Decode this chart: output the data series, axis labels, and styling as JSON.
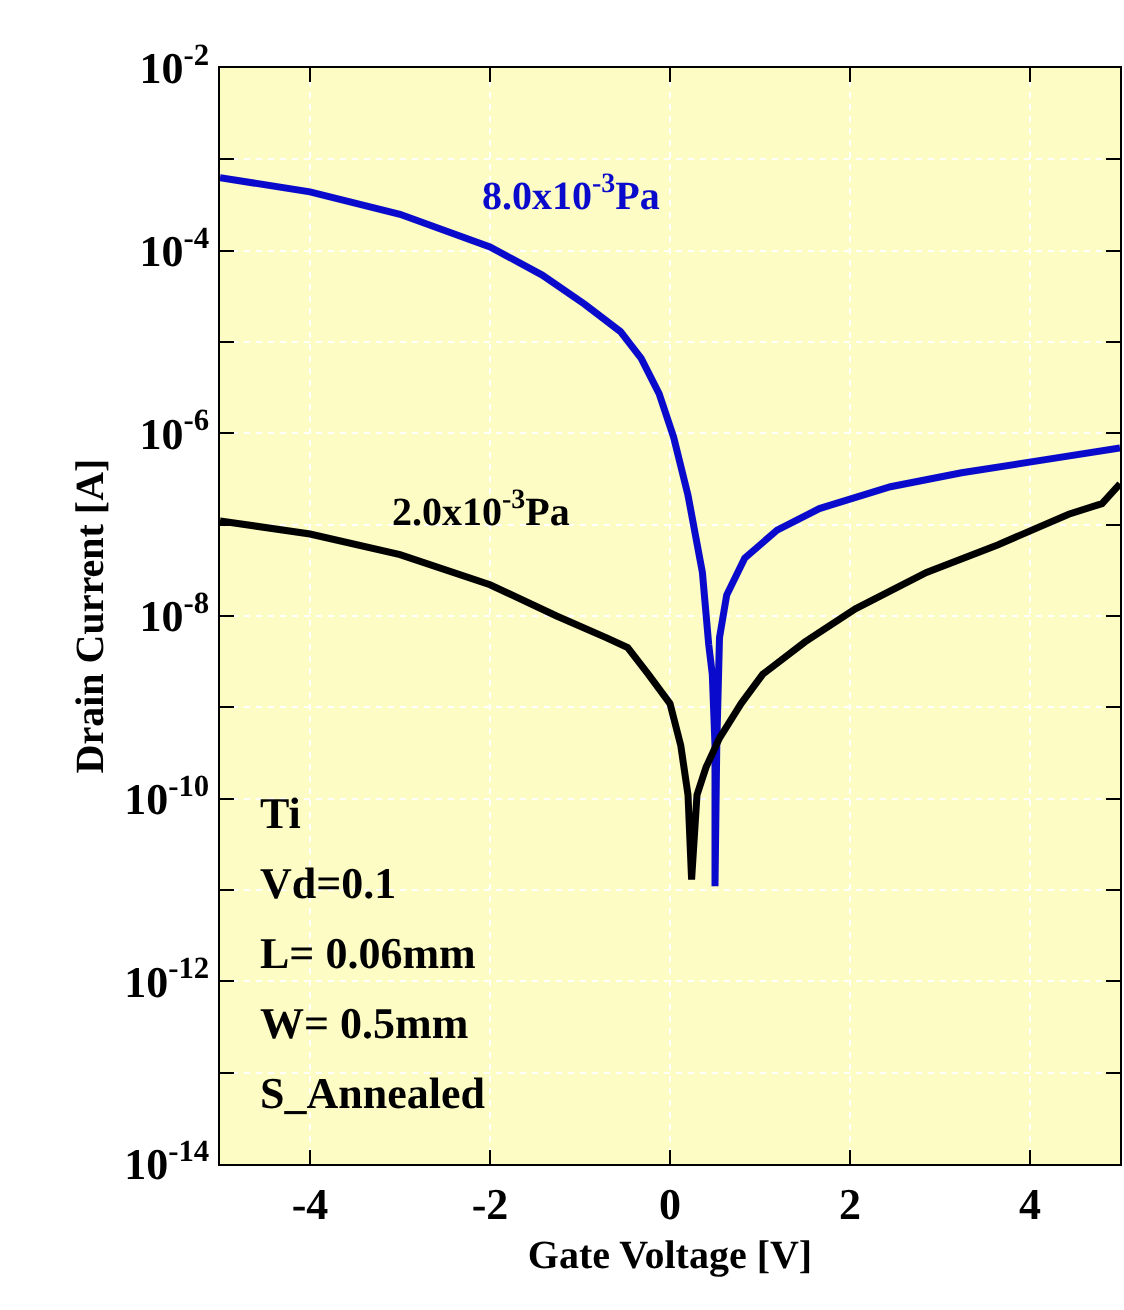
{
  "chart_data": {
    "type": "line",
    "xlabel": "Gate Voltage [V]",
    "ylabel": "Drain Current [A]",
    "xlim": [
      -5,
      5
    ],
    "xticks": [
      -4,
      -2,
      0,
      2,
      4
    ],
    "ylim": [
      1e-14,
      0.01
    ],
    "log": "y",
    "grid": true,
    "marker": "none",
    "line_style": "solid",
    "yticks": [
      {
        "value": 0.01,
        "label": "10$^{-2}$"
      },
      {
        "value": 0.001,
        "label": null
      },
      {
        "value": 0.0001,
        "label": "10$^{-4}$"
      },
      {
        "value": 1e-05,
        "label": null
      },
      {
        "value": 1e-06,
        "label": "10$^{-6}$"
      },
      {
        "value": 1e-07,
        "label": null
      },
      {
        "value": 1e-08,
        "label": "10$^{-8}$"
      },
      {
        "value": 1e-09,
        "label": null
      },
      {
        "value": 1e-10,
        "label": "10$^{-10}$"
      },
      {
        "value": 1e-11,
        "label": null
      },
      {
        "value": 1e-12,
        "label": "10$^{-12}$"
      },
      {
        "value": 1e-13,
        "label": null
      },
      {
        "value": 1e-14,
        "label": "10$^{-14}$"
      }
    ],
    "series": [
      {
        "color": "#0a0acc",
        "x": [
          -5,
          -4,
          -3,
          -2,
          -1.42,
          -0.95,
          -0.55,
          -0.32,
          -0.12,
          0.04,
          0.2,
          0.36,
          0.43,
          0.47,
          0.5,
          0.5,
          0.52,
          0.55,
          0.63,
          0.83,
          1.19,
          1.66,
          2.45,
          3.24,
          4.03,
          5.0
        ],
        "values": [
          0.00063,
          0.00044,
          0.00025,
          0.00011,
          5.4e-05,
          2.6e-05,
          1.3e-05,
          6.6e-06,
          2.7e-06,
          9.1e-07,
          2.1e-07,
          3e-08,
          4.9e-09,
          2.3e-09,
          3.8e-10,
          1.1e-11,
          4e-10,
          5.8e-09,
          1.7e-08,
          4.3e-08,
          8.7e-08,
          1.5e-07,
          2.6e-07,
          3.7e-07,
          4.9e-07,
          6.9e-07
        ]
      },
      {
        "color": "#000000",
        "x": [
          -5,
          -4,
          -3,
          -2,
          -1.26,
          -0.71,
          -0.47,
          -0.24,
          0,
          0.12,
          0.2,
          0.24,
          0.3,
          0.4,
          0.55,
          0.79,
          1.03,
          1.5,
          2.06,
          2.85,
          3.64,
          4.43,
          4.8,
          5.0
        ],
        "values": [
          1.1e-07,
          7.9e-08,
          4.7e-08,
          2.2e-08,
          1e-08,
          5.8e-09,
          4.5e-09,
          2.3e-09,
          1.1e-09,
          3.8e-10,
          1.1e-10,
          1.3e-11,
          1.1e-10,
          2.2e-10,
          4.6e-10,
          1.1e-09,
          2.3e-09,
          5.2e-09,
          1.2e-08,
          3e-08,
          6e-08,
          1.3e-07,
          1.7e-07,
          2.8e-07
        ]
      }
    ],
    "annotations": [
      "8.0x10$^{-3}$Pa",
      "2.0x10$^{-3}$Pa",
      "Ti",
      "Vd=0.1",
      "L= 0.06mm",
      "W= 0.5mm",
      "S_Annealed"
    ]
  }
}
